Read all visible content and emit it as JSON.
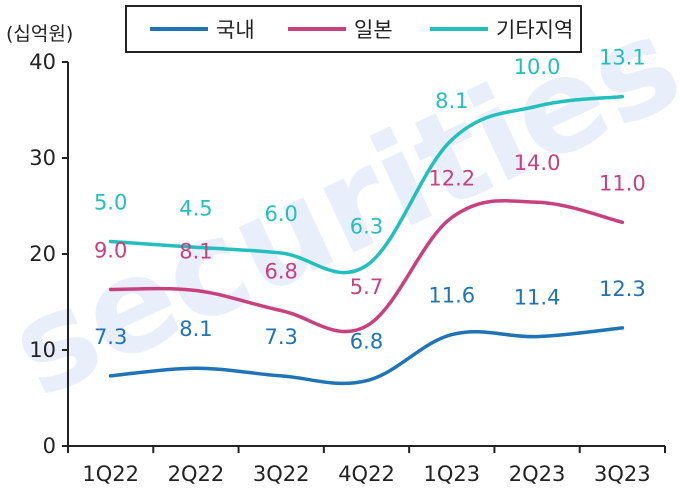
{
  "chart_data": {
    "type": "line",
    "unit_label": "(십억원)",
    "categories": [
      "1Q22",
      "2Q22",
      "3Q22",
      "4Q22",
      "1Q23",
      "2Q23",
      "3Q23"
    ],
    "ylim": [
      0,
      40
    ],
    "yticks": [
      "0",
      "10",
      "20",
      "30",
      "40"
    ],
    "grid": false,
    "stacked": true,
    "legend_position": "top",
    "watermark": "securities",
    "series": [
      {
        "name": "국내",
        "color": "#1f73b7",
        "values": [
          7.3,
          8.1,
          7.3,
          6.8,
          11.6,
          11.4,
          12.3
        ],
        "labels": [
          "7.3",
          "8.1",
          "7.3",
          "6.8",
          "11.6",
          "11.4",
          "12.3"
        ]
      },
      {
        "name": "일본",
        "color": "#c9407f",
        "values": [
          9.0,
          8.1,
          6.8,
          5.7,
          12.2,
          14.0,
          11.0
        ],
        "labels": [
          "9.0",
          "8.1",
          "6.8",
          "5.7",
          "12.2",
          "14.0",
          "11.0"
        ]
      },
      {
        "name": "기타지역",
        "color": "#22bfbf",
        "values": [
          5.0,
          4.5,
          6.0,
          6.3,
          8.1,
          10.0,
          13.1
        ],
        "labels": [
          "5.0",
          "4.5",
          "6.0",
          "6.3",
          "8.1",
          "10.0",
          "13.1"
        ]
      }
    ]
  }
}
